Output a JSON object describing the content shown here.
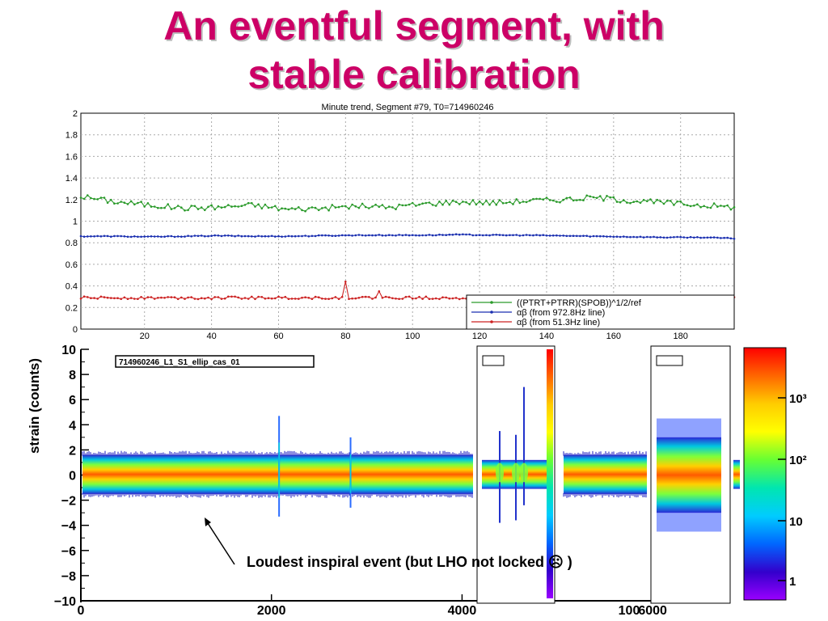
{
  "slide": {
    "title_line1": "An eventful segment, with",
    "title_line2": "stable calibration",
    "annotation": "Loudest inspiral event (but LHO not locked ☹ )"
  },
  "chart_data": [
    {
      "type": "line",
      "title": "Minute trend, Segment #79, T0=714960246",
      "xlim": [
        1,
        196
      ],
      "ylim": [
        0,
        2
      ],
      "x_ticks": [
        "20",
        "40",
        "60",
        "80",
        "100",
        "120",
        "140",
        "160",
        "180"
      ],
      "y_ticks": [
        "0",
        "0.2",
        "0.4",
        "0.6",
        "0.8",
        "1",
        "1.2",
        "1.4",
        "1.6",
        "1.8",
        "2"
      ],
      "grid": true,
      "legend_position": "bottom-right",
      "series": [
        {
          "name": "((PTRT+PTRR)(SPOB))^1/2/ref",
          "color": "#2a9a2a",
          "mean": 1.15,
          "x_start": 1,
          "x_end": 196,
          "values_sample": [
            1.23,
            1.18,
            1.15,
            1.12,
            1.13,
            1.15,
            1.11,
            1.12,
            1.14,
            1.13,
            1.16,
            1.18,
            1.17,
            1.19,
            1.2,
            1.22,
            1.19,
            1.17,
            1.15,
            1.13
          ]
        },
        {
          "name": "αβ (from 972.8Hz line)",
          "color": "#1a2fb0",
          "mean": 0.86,
          "x_start": 1,
          "x_end": 196,
          "values_sample": [
            0.86,
            0.86,
            0.855,
            0.86,
            0.865,
            0.86,
            0.86,
            0.865,
            0.87,
            0.87,
            0.87,
            0.875,
            0.87,
            0.87,
            0.865,
            0.86,
            0.855,
            0.85,
            0.85,
            0.84
          ]
        },
        {
          "name": "αβ (from 51.3Hz line)",
          "color": "#cc2222",
          "mean": 0.29,
          "x_start": 1,
          "x_end": 196,
          "spikes": [
            {
              "x": 80,
              "y": 0.44
            },
            {
              "x": 90,
              "y": 0.35
            }
          ]
        }
      ]
    },
    {
      "type": "heatmap",
      "name_label": "714960246_L1_S1_ellip_cas_01",
      "ylabel": "strain (counts)",
      "xlim": [
        0,
        7000
      ],
      "ylim": [
        -10,
        10
      ],
      "x_ticks": [
        "0",
        "2000",
        "4000",
        "6000"
      ],
      "y_ticks": [
        "10",
        "8",
        "6",
        "4",
        "2",
        "0",
        "−2",
        "−4",
        "−6",
        "−8",
        "−10"
      ],
      "events": [
        {
          "x": 2080,
          "ymax": 4.7,
          "ymin": -3.3
        },
        {
          "x": 2830,
          "ymax": 3.0,
          "ymin": -2.6
        }
      ],
      "partial_tick": "100",
      "colorbar_ticks": [
        "10³",
        "10²",
        "10",
        "1"
      ],
      "colorbar_colors": [
        "#ff0000",
        "#ff6600",
        "#ffcc00",
        "#ffff00",
        "#66ff33",
        "#00e6b0",
        "#00ccff",
        "#0066ff",
        "#3300cc",
        "#9900ff"
      ]
    }
  ]
}
